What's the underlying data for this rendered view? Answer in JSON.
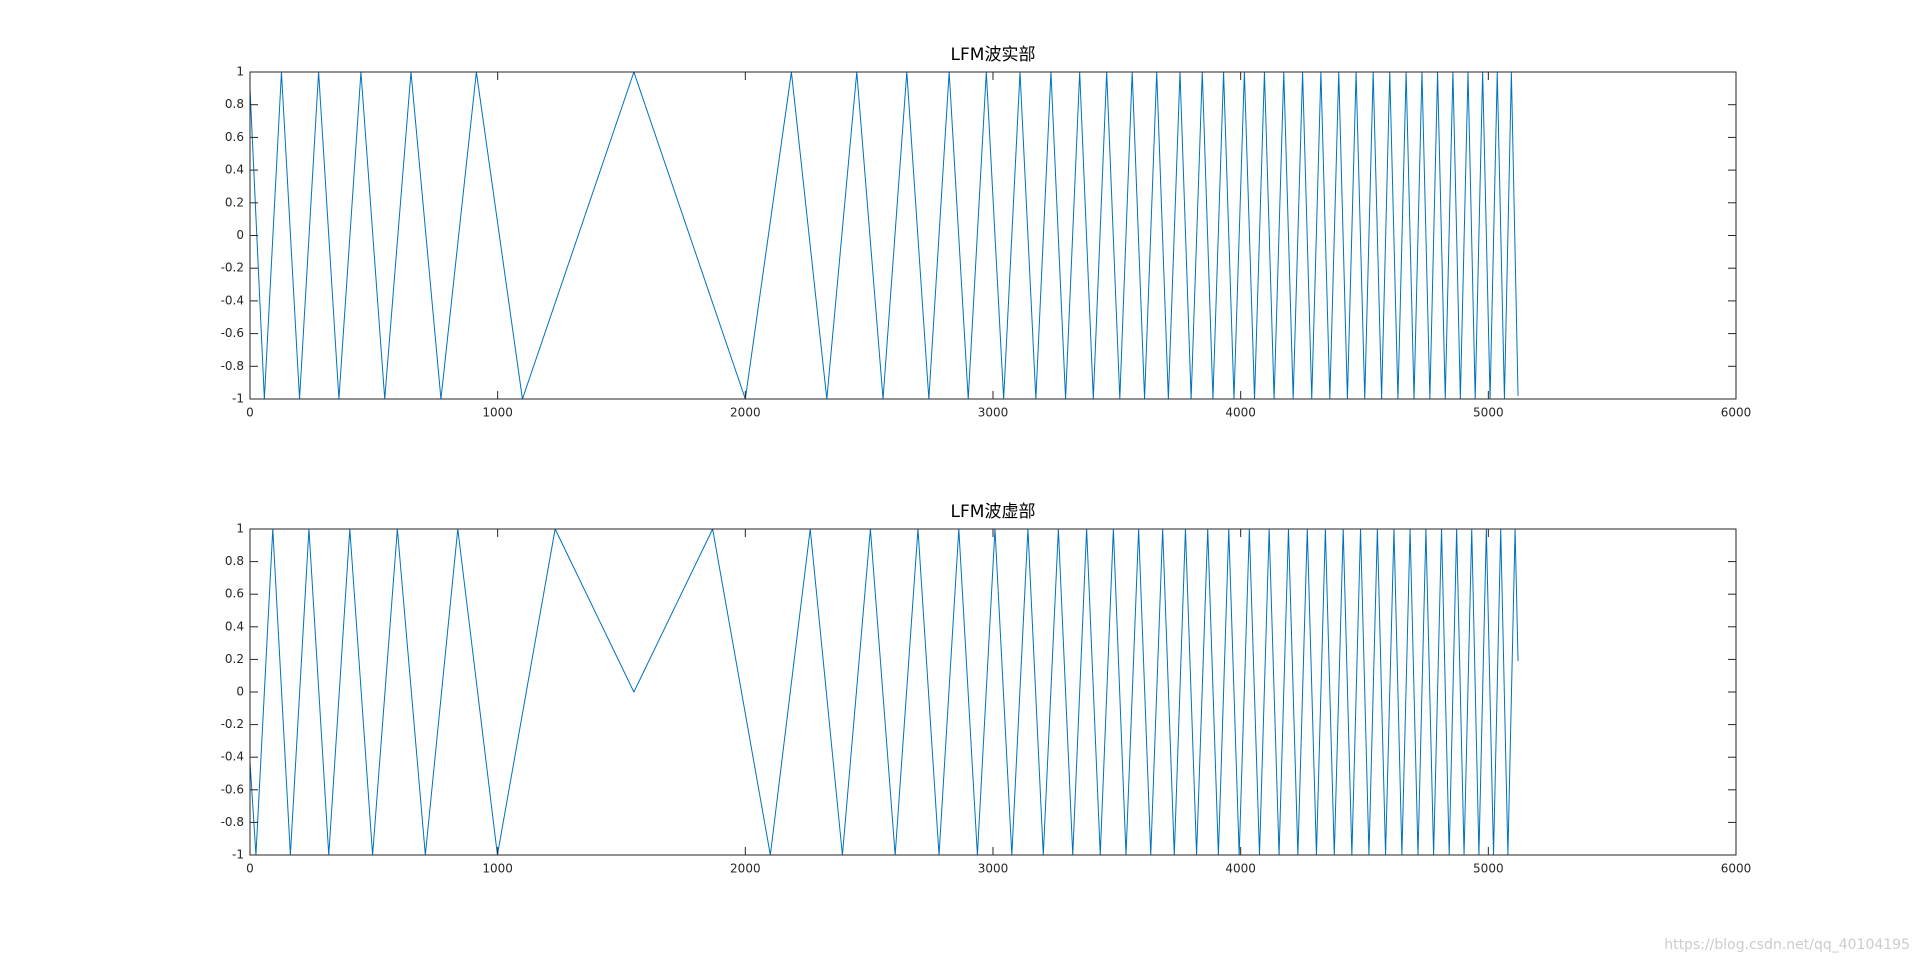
{
  "chart_data": [
    {
      "type": "line",
      "title": "LFM波实部",
      "color": "#0072bd",
      "xlim": [
        0,
        6000
      ],
      "xticks": [
        0,
        1000,
        2000,
        3000,
        4000,
        5000,
        6000
      ],
      "ylim": [
        -1,
        1
      ],
      "yticks": [
        -1,
        -0.8,
        -0.6,
        -0.4,
        -0.2,
        0,
        0.2,
        0.4,
        0.6,
        0.8,
        1
      ],
      "x": [
        0,
        58,
        127,
        200,
        277,
        359,
        448,
        544,
        650,
        771,
        914,
        1100,
        1550,
        2000,
        2186,
        2329,
        2450,
        2556,
        2652,
        2741,
        2823,
        2900,
        2973,
        3043,
        3109,
        3173,
        3234,
        3293,
        3350,
        3405,
        3459,
        3512,
        3562,
        3612,
        3661,
        3708,
        3755,
        3800,
        3845,
        3888,
        3931,
        3973,
        4015,
        4056,
        4096,
        4135,
        4174,
        4212,
        4250,
        4287,
        4324,
        4360,
        4396,
        4431,
        4466,
        4501,
        4535,
        4569,
        4602,
        4635,
        4668,
        4700,
        4732,
        4764,
        4795,
        4826,
        4857,
        4887,
        4918,
        4947,
        4977,
        5007,
        5036,
        5065,
        5093,
        5120
      ],
      "values": [
        0.9,
        -1,
        1,
        -1,
        1,
        -1,
        1,
        -1,
        1,
        -1,
        1,
        -1,
        1,
        -1,
        1,
        -1,
        1,
        -1,
        1,
        -1,
        1,
        -1,
        1,
        -1,
        1,
        -1,
        1,
        -1,
        1,
        -1,
        1,
        -1,
        1,
        -1,
        1,
        -1,
        1,
        -1,
        1,
        -1,
        1,
        -1,
        1,
        -1,
        1,
        -1,
        1,
        -1,
        1,
        -1,
        1,
        -1,
        1,
        -1,
        1,
        -1,
        1,
        -1,
        1,
        -1,
        1,
        -1,
        1,
        -1,
        1,
        -1,
        1,
        -1,
        1,
        -1,
        1,
        -1,
        1,
        -1,
        1,
        -0.98
      ]
    },
    {
      "type": "line",
      "title": "LFM波虚部",
      "color": "#0072bd",
      "xlim": [
        0,
        6000
      ],
      "xticks": [
        0,
        1000,
        2000,
        3000,
        4000,
        5000,
        6000
      ],
      "ylim": [
        -1,
        1
      ],
      "yticks": [
        -1,
        -0.8,
        -0.6,
        -0.4,
        -0.2,
        0,
        0.2,
        0.4,
        0.6,
        0.8,
        1
      ],
      "x": [
        0,
        24,
        92,
        163,
        238,
        318,
        403,
        495,
        595,
        708,
        839,
        999,
        1232,
        1550,
        1868,
        2101,
        2262,
        2392,
        2505,
        2605,
        2697,
        2782,
        2862,
        2937,
        3008,
        3076,
        3141,
        3203,
        3264,
        3322,
        3378,
        3433,
        3486,
        3537,
        3588,
        3637,
        3685,
        3732,
        3777,
        3822,
        3867,
        3910,
        3952,
        3994,
        4035,
        4076,
        4115,
        4155,
        4193,
        4231,
        4269,
        4306,
        4342,
        4378,
        4414,
        4449,
        4484,
        4518,
        4552,
        4585,
        4619,
        4651,
        4684,
        4716,
        4748,
        4779,
        4811,
        4842,
        4872,
        4902,
        4933,
        4962,
        4992,
        5021,
        5050,
        5079,
        5108,
        5120
      ],
      "values": [
        -0.43,
        -1,
        1,
        -1,
        1,
        -1,
        1,
        -1,
        1,
        -1,
        1,
        -1,
        1,
        0,
        1,
        -1,
        1,
        -1,
        1,
        -1,
        1,
        -1,
        1,
        -1,
        1,
        -1,
        1,
        -1,
        1,
        -1,
        1,
        -1,
        1,
        -1,
        1,
        -1,
        1,
        -1,
        1,
        -1,
        1,
        -1,
        1,
        -1,
        1,
        -1,
        1,
        -1,
        1,
        -1,
        1,
        -1,
        1,
        -1,
        1,
        -1,
        1,
        -1,
        1,
        -1,
        1,
        -1,
        1,
        -1,
        1,
        -1,
        1,
        -1,
        1,
        -1,
        1,
        -1,
        1,
        -1,
        1,
        -1,
        1,
        0.19
      ]
    }
  ],
  "watermark": "https://blog.csdn.net/qq_40104195"
}
